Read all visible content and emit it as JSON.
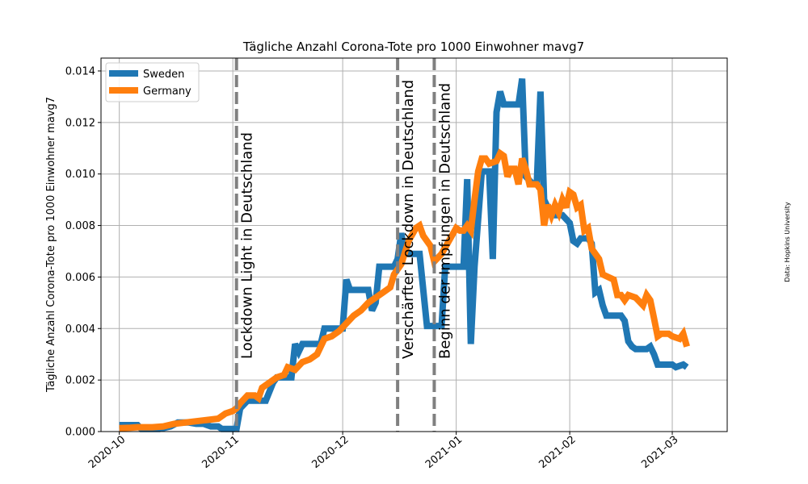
{
  "chart_data": {
    "type": "line",
    "title": "Tägliche Anzahl Corona-Tote pro 1000 Einwohner  mavg7",
    "xlabel": "",
    "ylabel": "Tägliche Anzahl Corona-Tote pro 1000 Einwohner mavg7",
    "source_note": "Data: Hopkins University",
    "grid": true,
    "legend_position": "top-left",
    "xlim": [
      "2020-09-26",
      "2021-03-16"
    ],
    "ylim": [
      0,
      0.0145
    ],
    "x_ticks": [
      {
        "date": "2020-10-01",
        "label": "2020-10"
      },
      {
        "date": "2020-11-01",
        "label": "2020-11"
      },
      {
        "date": "2020-12-01",
        "label": "2020-12"
      },
      {
        "date": "2021-01-01",
        "label": "2021-01"
      },
      {
        "date": "2021-02-01",
        "label": "2021-02"
      },
      {
        "date": "2021-03-01",
        "label": "2021-03"
      }
    ],
    "y_ticks": [
      {
        "value": 0.0,
        "label": "0.000"
      },
      {
        "value": 0.002,
        "label": "0.002"
      },
      {
        "value": 0.004,
        "label": "0.004"
      },
      {
        "value": 0.006,
        "label": "0.006"
      },
      {
        "value": 0.008,
        "label": "0.008"
      },
      {
        "value": 0.01,
        "label": "0.010"
      },
      {
        "value": 0.012,
        "label": "0.012"
      },
      {
        "value": 0.014,
        "label": "0.014"
      }
    ],
    "events": [
      {
        "date": "2020-11-02",
        "label": "Lockdown Light in Deutschland"
      },
      {
        "date": "2020-12-16",
        "label": "Verschärfter Lockdown in Deutschland"
      },
      {
        "date": "2020-12-26",
        "label": "Beginn der Impfungen in Deutschland"
      }
    ],
    "series": [
      {
        "name": "Sweden",
        "color": "#1f77b4",
        "points": [
          [
            "2020-10-01",
            0.00025
          ],
          [
            "2020-10-06",
            0.00025
          ],
          [
            "2020-10-07",
            0.0001
          ],
          [
            "2020-10-10",
            0.0001
          ],
          [
            "2020-10-12",
            0.0001
          ],
          [
            "2020-10-15",
            0.0002
          ],
          [
            "2020-10-17",
            0.00035
          ],
          [
            "2020-10-20",
            0.00035
          ],
          [
            "2020-10-22",
            0.0003
          ],
          [
            "2020-10-24",
            0.0003
          ],
          [
            "2020-10-26",
            0.0002
          ],
          [
            "2020-10-28",
            0.0002
          ],
          [
            "2020-10-29",
            0.0001
          ],
          [
            "2020-10-31",
            0.0001
          ],
          [
            "2020-11-02",
            0.0001
          ],
          [
            "2020-11-03",
            0.0009
          ],
          [
            "2020-11-05",
            0.0012
          ],
          [
            "2020-11-07",
            0.0012
          ],
          [
            "2020-11-10",
            0.0012
          ],
          [
            "2020-11-12",
            0.0019
          ],
          [
            "2020-11-13",
            0.0021
          ],
          [
            "2020-11-17",
            0.0021
          ],
          [
            "2020-11-18",
            0.0034
          ],
          [
            "2020-11-19",
            0.0031
          ],
          [
            "2020-11-20",
            0.0034
          ],
          [
            "2020-11-25",
            0.0034
          ],
          [
            "2020-11-26",
            0.004
          ],
          [
            "2020-11-30",
            0.004
          ],
          [
            "2020-12-01",
            0.004
          ],
          [
            "2020-12-02",
            0.0059
          ],
          [
            "2020-12-03",
            0.0055
          ],
          [
            "2020-12-08",
            0.0055
          ],
          [
            "2020-12-09",
            0.0047
          ],
          [
            "2020-12-10",
            0.005
          ],
          [
            "2020-12-11",
            0.0064
          ],
          [
            "2020-12-15",
            0.0064
          ],
          [
            "2020-12-16",
            0.0067
          ],
          [
            "2020-12-17",
            0.0077
          ],
          [
            "2020-12-18",
            0.0069
          ],
          [
            "2020-12-22",
            0.0069
          ],
          [
            "2020-12-24",
            0.0041
          ],
          [
            "2020-12-28",
            0.0041
          ],
          [
            "2020-12-29",
            0.0064
          ],
          [
            "2021-01-03",
            0.0064
          ],
          [
            "2021-01-04",
            0.0098
          ],
          [
            "2021-01-05",
            0.0034
          ],
          [
            "2021-01-06",
            0.0064
          ],
          [
            "2021-01-08",
            0.0101
          ],
          [
            "2021-01-10",
            0.0101
          ],
          [
            "2021-01-11",
            0.0067
          ],
          [
            "2021-01-12",
            0.0124
          ],
          [
            "2021-01-13",
            0.0132
          ],
          [
            "2021-01-14",
            0.0127
          ],
          [
            "2021-01-18",
            0.0127
          ],
          [
            "2021-01-19",
            0.0137
          ],
          [
            "2021-01-20",
            0.0099
          ],
          [
            "2021-01-22",
            0.0096
          ],
          [
            "2021-01-23",
            0.0096
          ],
          [
            "2021-01-24",
            0.0132
          ],
          [
            "2021-01-25",
            0.009
          ],
          [
            "2021-01-27",
            0.0084
          ],
          [
            "2021-01-30",
            0.0084
          ],
          [
            "2021-02-01",
            0.0081
          ],
          [
            "2021-02-02",
            0.0074
          ],
          [
            "2021-02-03",
            0.0073
          ],
          [
            "2021-02-04",
            0.0075
          ],
          [
            "2021-02-06",
            0.0075
          ],
          [
            "2021-02-07",
            0.0073
          ],
          [
            "2021-02-08",
            0.0054
          ],
          [
            "2021-02-09",
            0.0055
          ],
          [
            "2021-02-10",
            0.0049
          ],
          [
            "2021-02-11",
            0.0045
          ],
          [
            "2021-02-15",
            0.0045
          ],
          [
            "2021-02-16",
            0.0043
          ],
          [
            "2021-02-17",
            0.0035
          ],
          [
            "2021-02-18",
            0.0033
          ],
          [
            "2021-02-19",
            0.0032
          ],
          [
            "2021-02-22",
            0.0032
          ],
          [
            "2021-02-23",
            0.0033
          ],
          [
            "2021-02-24",
            0.003
          ],
          [
            "2021-02-25",
            0.0026
          ],
          [
            "2021-02-28",
            0.0026
          ],
          [
            "2021-03-01",
            0.0026
          ],
          [
            "2021-03-02",
            0.0025
          ],
          [
            "2021-03-04",
            0.0026
          ],
          [
            "2021-03-05",
            0.0025
          ]
        ]
      },
      {
        "name": "Germany",
        "color": "#ff7f0e",
        "points": [
          [
            "2020-10-01",
            0.00013
          ],
          [
            "2020-10-04",
            0.00015
          ],
          [
            "2020-10-06",
            0.00017
          ],
          [
            "2020-10-10",
            0.00017
          ],
          [
            "2020-10-13",
            0.0002
          ],
          [
            "2020-10-16",
            0.0003
          ],
          [
            "2020-10-19",
            0.00035
          ],
          [
            "2020-10-22",
            0.0004
          ],
          [
            "2020-10-25",
            0.00045
          ],
          [
            "2020-10-28",
            0.0005
          ],
          [
            "2020-10-30",
            0.0007
          ],
          [
            "2020-11-01",
            0.0008
          ],
          [
            "2020-11-02",
            0.0009
          ],
          [
            "2020-11-03",
            0.0011
          ],
          [
            "2020-11-05",
            0.0014
          ],
          [
            "2020-11-07",
            0.0014
          ],
          [
            "2020-11-08",
            0.0013
          ],
          [
            "2020-11-09",
            0.0017
          ],
          [
            "2020-11-11",
            0.0019
          ],
          [
            "2020-11-13",
            0.0021
          ],
          [
            "2020-11-15",
            0.0022
          ],
          [
            "2020-11-16",
            0.0025
          ],
          [
            "2020-11-18",
            0.0024
          ],
          [
            "2020-11-20",
            0.0027
          ],
          [
            "2020-11-22",
            0.0028
          ],
          [
            "2020-11-24",
            0.003
          ],
          [
            "2020-11-26",
            0.0036
          ],
          [
            "2020-11-28",
            0.0037
          ],
          [
            "2020-11-30",
            0.0039
          ],
          [
            "2020-12-02",
            0.0042
          ],
          [
            "2020-12-04",
            0.0045
          ],
          [
            "2020-12-06",
            0.0047
          ],
          [
            "2020-12-08",
            0.005
          ],
          [
            "2020-12-10",
            0.0052
          ],
          [
            "2020-12-12",
            0.0054
          ],
          [
            "2020-12-14",
            0.0056
          ],
          [
            "2020-12-15",
            0.0061
          ],
          [
            "2020-12-17",
            0.0065
          ],
          [
            "2020-12-19",
            0.0074
          ],
          [
            "2020-12-21",
            0.0079
          ],
          [
            "2020-12-22",
            0.008
          ],
          [
            "2020-12-23",
            0.0076
          ],
          [
            "2020-12-25",
            0.0072
          ],
          [
            "2020-12-26",
            0.0066
          ],
          [
            "2020-12-28",
            0.0069
          ],
          [
            "2020-12-30",
            0.0074
          ],
          [
            "2021-01-01",
            0.0079
          ],
          [
            "2021-01-02",
            0.0078
          ],
          [
            "2021-01-03",
            0.0078
          ],
          [
            "2021-01-04",
            0.008
          ],
          [
            "2021-01-05",
            0.0078
          ],
          [
            "2021-01-06",
            0.009
          ],
          [
            "2021-01-07",
            0.0101
          ],
          [
            "2021-01-08",
            0.0106
          ],
          [
            "2021-01-09",
            0.0106
          ],
          [
            "2021-01-10",
            0.0104
          ],
          [
            "2021-01-12",
            0.0105
          ],
          [
            "2021-01-13",
            0.0108
          ],
          [
            "2021-01-14",
            0.0107
          ],
          [
            "2021-01-15",
            0.0099
          ],
          [
            "2021-01-16",
            0.0102
          ],
          [
            "2021-01-17",
            0.0102
          ],
          [
            "2021-01-18",
            0.0096
          ],
          [
            "2021-01-19",
            0.0106
          ],
          [
            "2021-01-20",
            0.0102
          ],
          [
            "2021-01-21",
            0.0096
          ],
          [
            "2021-01-22",
            0.0096
          ],
          [
            "2021-01-23",
            0.0096
          ],
          [
            "2021-01-24",
            0.0094
          ],
          [
            "2021-01-25",
            0.008
          ],
          [
            "2021-01-26",
            0.0088
          ],
          [
            "2021-01-27",
            0.0084
          ],
          [
            "2021-01-28",
            0.0088
          ],
          [
            "2021-01-29",
            0.0085
          ],
          [
            "2021-01-30",
            0.009
          ],
          [
            "2021-01-31",
            0.0087
          ],
          [
            "2021-02-01",
            0.0093
          ],
          [
            "2021-02-02",
            0.0092
          ],
          [
            "2021-02-03",
            0.0087
          ],
          [
            "2021-02-04",
            0.0088
          ],
          [
            "2021-02-05",
            0.0078
          ],
          [
            "2021-02-06",
            0.0079
          ],
          [
            "2021-02-07",
            0.0071
          ],
          [
            "2021-02-09",
            0.0067
          ],
          [
            "2021-02-10",
            0.0061
          ],
          [
            "2021-02-13",
            0.0059
          ],
          [
            "2021-02-14",
            0.0053
          ],
          [
            "2021-02-15",
            0.0053
          ],
          [
            "2021-02-16",
            0.0051
          ],
          [
            "2021-02-17",
            0.0053
          ],
          [
            "2021-02-19",
            0.0052
          ],
          [
            "2021-02-21",
            0.0049
          ],
          [
            "2021-02-22",
            0.0053
          ],
          [
            "2021-02-23",
            0.0051
          ],
          [
            "2021-02-24",
            0.0044
          ],
          [
            "2021-02-25",
            0.0037
          ],
          [
            "2021-02-26",
            0.0038
          ],
          [
            "2021-02-28",
            0.0038
          ],
          [
            "2021-03-01",
            0.0037
          ],
          [
            "2021-03-03",
            0.0036
          ],
          [
            "2021-03-04",
            0.0038
          ],
          [
            "2021-03-05",
            0.0033
          ]
        ]
      }
    ]
  }
}
